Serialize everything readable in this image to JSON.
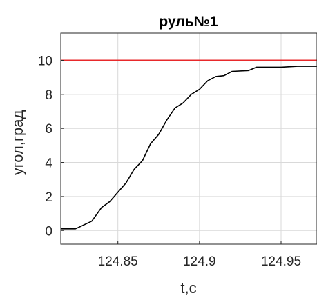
{
  "chart_data": {
    "type": "line",
    "title": "руль№1",
    "xlabel": "t,c",
    "ylabel": "угол,град",
    "xlim": [
      124.815,
      124.972
    ],
    "ylim": [
      -0.8,
      11.6
    ],
    "xticks": [
      124.85,
      124.9,
      124.95
    ],
    "xtick_labels": [
      "124.85",
      "124.9",
      "124.95"
    ],
    "yticks": [
      0,
      2,
      4,
      6,
      8,
      10
    ],
    "ytick_labels": [
      "0",
      "2",
      "4",
      "6",
      "8",
      "10"
    ],
    "grid": true,
    "series": [
      {
        "color": "#000000",
        "x": [
          124.815,
          124.824,
          124.834,
          124.84,
          124.845,
          124.85,
          124.855,
          124.86,
          124.865,
          124.87,
          124.875,
          124.88,
          124.885,
          124.89,
          124.895,
          124.9,
          124.905,
          124.91,
          124.915,
          124.92,
          124.93,
          124.935,
          124.94,
          124.95,
          124.96,
          124.972
        ],
        "y": [
          0.1,
          0.1,
          0.55,
          1.35,
          1.7,
          2.25,
          2.8,
          3.6,
          4.1,
          5.1,
          5.65,
          6.5,
          7.2,
          7.5,
          8.0,
          8.3,
          8.8,
          9.05,
          9.1,
          9.35,
          9.4,
          9.6,
          9.6,
          9.6,
          9.65,
          9.65
        ]
      },
      {
        "color": "#e8292b",
        "x": [
          124.815,
          124.972
        ],
        "y": [
          10,
          10
        ]
      }
    ]
  }
}
